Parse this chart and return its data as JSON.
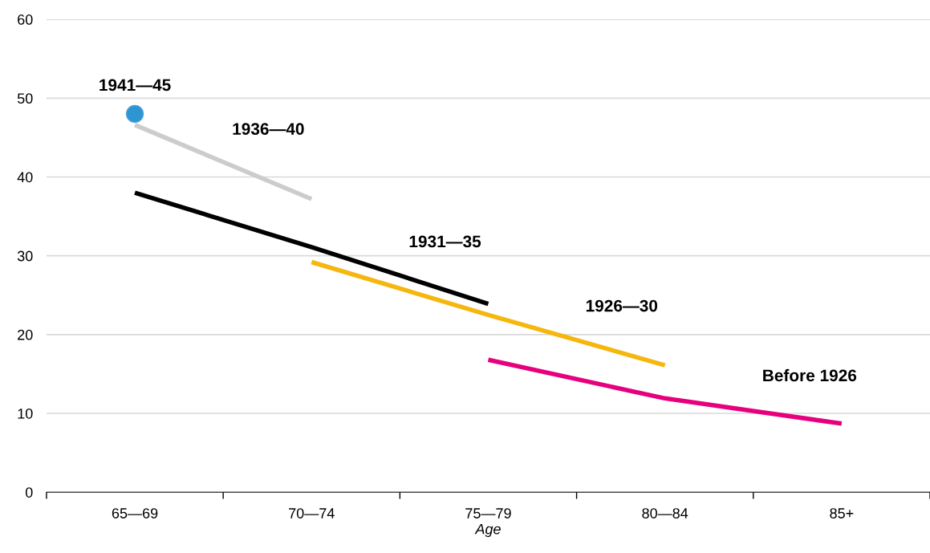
{
  "chart_data": {
    "type": "line",
    "xlabel": "Age",
    "categories": [
      "65—69",
      "70—74",
      "75—79",
      "80—84",
      "85+"
    ],
    "ylim": [
      0,
      60
    ],
    "yticks": [
      0,
      10,
      20,
      30,
      40,
      50,
      60
    ],
    "grid": "y",
    "legend": false,
    "marker": "none",
    "line_style": "solid",
    "series": [
      {
        "name": "1941—45",
        "color": "#2e95d3",
        "marker": "circle",
        "values": [
          48,
          null,
          null,
          null,
          null
        ]
      },
      {
        "name": "1936—40",
        "color": "#cccccc",
        "values": [
          46.6,
          37.2,
          null,
          null,
          null
        ]
      },
      {
        "name": "1931—35",
        "color": "#000000",
        "values": [
          38.0,
          31.1,
          23.9,
          null,
          null
        ]
      },
      {
        "name": "1926—30",
        "color": "#f5b70f",
        "values": [
          null,
          29.2,
          22.5,
          16.1,
          null
        ]
      },
      {
        "name": "Before 1926",
        "color": "#e6007e",
        "values": [
          null,
          null,
          16.8,
          11.9,
          8.7
        ]
      }
    ]
  }
}
